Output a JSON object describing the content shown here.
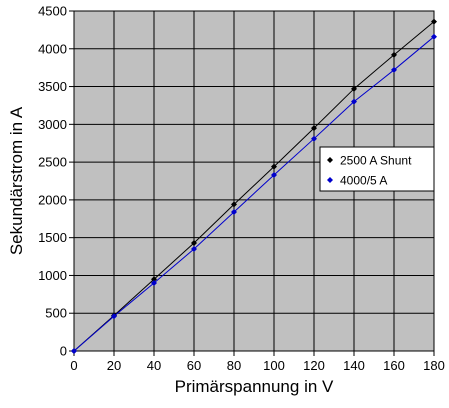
{
  "chart_data": {
    "type": "line",
    "xlabel": "Primärspannung in V",
    "ylabel": "Sekundärstrom in A",
    "xlim": [
      0,
      180
    ],
    "ylim": [
      0,
      4500
    ],
    "xticks": [
      0,
      20,
      40,
      60,
      80,
      100,
      120,
      140,
      160,
      180
    ],
    "yticks": [
      0,
      500,
      1000,
      1500,
      2000,
      2500,
      3000,
      3500,
      4000,
      4500
    ],
    "grid": true,
    "plot_background": "#c0c0c0",
    "legend_position": "right-middle",
    "series": [
      {
        "name": "2500 A Shunt",
        "color": "#000000",
        "marker": "diamond",
        "x": [
          0,
          20,
          40,
          60,
          80,
          100,
          120,
          140,
          160,
          180
        ],
        "y": [
          0,
          470,
          950,
          1430,
          1940,
          2440,
          2950,
          3470,
          3920,
          4360
        ]
      },
      {
        "name": "4000/5 A",
        "color": "#0000cc",
        "marker": "diamond",
        "x": [
          0,
          20,
          40,
          60,
          80,
          100,
          120,
          140,
          160,
          180
        ],
        "y": [
          0,
          460,
          900,
          1350,
          1840,
          2330,
          2810,
          3300,
          3720,
          4160
        ]
      }
    ]
  }
}
